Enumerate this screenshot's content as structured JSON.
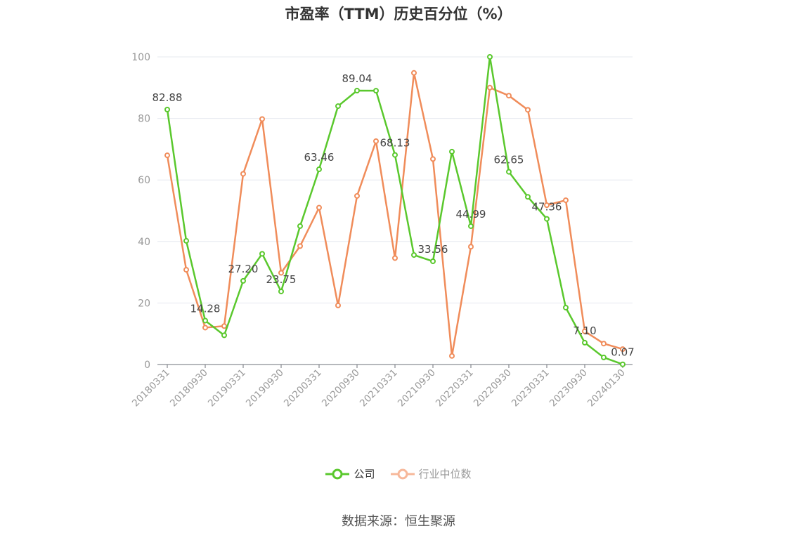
{
  "title": "市盈率（TTM）历史百分位（%）",
  "source": "数据来源：恒生聚源",
  "colors": {
    "company": "#5ac82d",
    "industry": "#f08c5a",
    "industry_legend": "#f7b89a",
    "grid": "#e6e8ef",
    "axis": "#999999"
  },
  "chart_data": {
    "type": "line",
    "title": "市盈率（TTM）历史百分位（%）",
    "xlabel": "",
    "ylabel": "",
    "ylim": [
      0,
      100
    ],
    "yticks": [
      0,
      20,
      40,
      60,
      80,
      100
    ],
    "grid": true,
    "legend_position": "bottom",
    "x": [
      "20180331",
      "20180630",
      "20180930",
      "20181231",
      "20190331",
      "20190630",
      "20190930",
      "20191231",
      "20200331",
      "20200630",
      "20200930",
      "20201231",
      "20210331",
      "20210630",
      "20210930",
      "20211231",
      "20220331",
      "20220630",
      "20220930",
      "20221231",
      "20230331",
      "20230630",
      "20230930",
      "20231231",
      "20240130"
    ],
    "xtick_labels": [
      "20180331",
      "20180930",
      "20190331",
      "20190930",
      "20200331",
      "20200930",
      "20210331",
      "20210930",
      "20220331",
      "20220930",
      "20230331",
      "20230930",
      "20240130"
    ],
    "xtick_indices": [
      0,
      2,
      4,
      6,
      8,
      10,
      12,
      14,
      16,
      18,
      20,
      22,
      24
    ],
    "series": [
      {
        "name": "公司",
        "values": [
          82.88,
          40.2,
          14.28,
          9.5,
          27.2,
          36.0,
          23.75,
          45.0,
          63.46,
          84.0,
          89.04,
          89.0,
          68.13,
          35.6,
          33.56,
          69.2,
          44.99,
          100.0,
          62.65,
          54.5,
          47.36,
          18.5,
          7.1,
          2.3,
          0.07
        ],
        "labeled_indices": [
          0,
          2,
          4,
          6,
          8,
          10,
          12,
          14,
          16,
          18,
          20,
          22,
          24
        ],
        "data_labels": [
          "82.88",
          "14.28",
          "27.20",
          "23.75",
          "63.46",
          "89.04",
          "68.13",
          "33.56",
          "44.99",
          "62.65",
          "47.36",
          "7.10",
          "0.07"
        ]
      },
      {
        "name": "行业中位数",
        "values": [
          68.0,
          30.8,
          12.0,
          12.5,
          62.0,
          79.8,
          29.8,
          38.5,
          51.0,
          19.2,
          54.8,
          72.6,
          34.6,
          94.8,
          66.8,
          2.8,
          38.3,
          90.0,
          87.4,
          82.8,
          51.8,
          53.4,
          10.8,
          6.8,
          5.0
        ]
      }
    ]
  }
}
